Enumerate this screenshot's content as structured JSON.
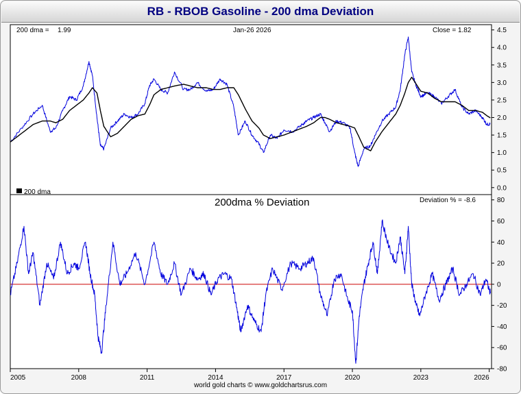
{
  "page": {
    "title": "RB - RBOB Gasoline - 200 dma Deviation",
    "footer": "world gold charts © www.goldchartsrus.com"
  },
  "chart_data": [
    {
      "type": "line",
      "panel": "price",
      "header": {
        "dma_label": "200 dma =",
        "dma_value": "1.99",
        "date": "Jan-26  2026",
        "close": "Close = 1.82"
      },
      "legend": [
        {
          "label": "200 dma",
          "color": "#000000"
        }
      ],
      "yticks": [
        "4.5",
        "4.0",
        "3.5",
        "3.0",
        "2.5",
        "2.0",
        "1.5",
        "1.0",
        "0.5",
        "0.0"
      ],
      "ylim": [
        -0.2,
        4.65
      ],
      "x": [
        2005.0,
        2005.5,
        2006.0,
        2006.4,
        2006.75,
        2007.0,
        2007.3,
        2007.6,
        2007.9,
        2008.2,
        2008.45,
        2008.6,
        2008.8,
        2008.95,
        2009.1,
        2009.4,
        2009.7,
        2010.0,
        2010.3,
        2010.6,
        2010.9,
        2011.1,
        2011.3,
        2011.6,
        2011.9,
        2012.2,
        2012.6,
        2012.9,
        2013.2,
        2013.6,
        2013.9,
        2014.2,
        2014.5,
        2014.8,
        2015.0,
        2015.3,
        2015.6,
        2015.9,
        2016.1,
        2016.4,
        2016.7,
        2017.0,
        2017.4,
        2017.8,
        2018.0,
        2018.3,
        2018.6,
        2018.8,
        2019.0,
        2019.3,
        2019.6,
        2019.9,
        2020.1,
        2020.25,
        2020.5,
        2020.8,
        2021.0,
        2021.3,
        2021.6,
        2021.9,
        2022.1,
        2022.3,
        2022.45,
        2022.6,
        2022.8,
        2023.0,
        2023.3,
        2023.6,
        2023.9,
        2024.2,
        2024.5,
        2024.8,
        2025.1,
        2025.4,
        2025.7,
        2025.9,
        2026.05
      ],
      "series": [
        {
          "name": "RBOB Gasoline",
          "color": "#0000dd",
          "values": [
            1.3,
            1.7,
            2.1,
            2.35,
            1.6,
            1.7,
            2.2,
            2.6,
            2.5,
            2.9,
            3.6,
            3.2,
            2.0,
            1.2,
            1.1,
            1.7,
            1.9,
            2.1,
            2.0,
            2.1,
            2.4,
            2.9,
            3.1,
            2.8,
            2.7,
            3.3,
            2.8,
            2.8,
            3.0,
            2.75,
            2.8,
            3.1,
            2.95,
            2.3,
            1.5,
            1.9,
            1.5,
            1.25,
            1.0,
            1.5,
            1.4,
            1.65,
            1.6,
            1.8,
            1.9,
            2.0,
            2.1,
            1.85,
            1.6,
            1.9,
            1.85,
            1.7,
            1.0,
            0.6,
            1.1,
            1.2,
            1.5,
            1.9,
            2.1,
            2.3,
            2.8,
            3.8,
            4.3,
            3.3,
            2.9,
            2.6,
            2.7,
            2.6,
            2.4,
            2.6,
            2.8,
            2.3,
            2.1,
            2.2,
            2.0,
            1.8,
            1.82
          ]
        },
        {
          "name": "200 dma",
          "color": "#000000",
          "values": [
            1.3,
            1.55,
            1.8,
            1.9,
            1.9,
            1.85,
            1.95,
            2.2,
            2.35,
            2.5,
            2.7,
            2.85,
            2.7,
            2.2,
            1.75,
            1.45,
            1.55,
            1.75,
            1.95,
            2.05,
            2.1,
            2.35,
            2.65,
            2.8,
            2.85,
            2.9,
            2.95,
            2.9,
            2.85,
            2.85,
            2.8,
            2.8,
            2.85,
            2.85,
            2.65,
            2.25,
            1.9,
            1.7,
            1.5,
            1.4,
            1.45,
            1.5,
            1.6,
            1.7,
            1.75,
            1.85,
            2.0,
            2.0,
            1.95,
            1.85,
            1.8,
            1.75,
            1.7,
            1.5,
            1.15,
            1.05,
            1.3,
            1.6,
            1.85,
            2.1,
            2.35,
            2.7,
            3.0,
            3.15,
            2.95,
            2.75,
            2.7,
            2.55,
            2.45,
            2.45,
            2.45,
            2.35,
            2.2,
            2.2,
            2.15,
            2.05,
            1.99
          ]
        }
      ]
    },
    {
      "type": "line",
      "panel": "deviation",
      "title": "200dma  %  Deviation",
      "header": {
        "deviation_label": "Deviation % = -8.6"
      },
      "yticks": [
        "80",
        "60",
        "40",
        "20",
        "0",
        "-20",
        "-40",
        "-60",
        "-80"
      ],
      "ylim": [
        -80,
        85
      ],
      "zero_line_color": "#cc0000",
      "x": [
        2005.0,
        2005.3,
        2005.6,
        2005.8,
        2006.0,
        2006.3,
        2006.6,
        2006.9,
        2007.2,
        2007.5,
        2007.8,
        2008.0,
        2008.3,
        2008.5,
        2008.7,
        2008.85,
        2009.0,
        2009.2,
        2009.5,
        2009.8,
        2010.1,
        2010.5,
        2010.9,
        2011.3,
        2011.6,
        2011.9,
        2012.2,
        2012.5,
        2012.9,
        2013.2,
        2013.5,
        2013.8,
        2014.1,
        2014.4,
        2014.7,
        2014.95,
        2015.1,
        2015.4,
        2015.7,
        2016.0,
        2016.2,
        2016.5,
        2016.9,
        2017.3,
        2017.7,
        2018.0,
        2018.3,
        2018.6,
        2018.9,
        2019.2,
        2019.5,
        2019.8,
        2020.0,
        2020.15,
        2020.3,
        2020.5,
        2020.7,
        2020.9,
        2021.1,
        2021.3,
        2021.6,
        2021.9,
        2022.1,
        2022.3,
        2022.45,
        2022.6,
        2022.8,
        2022.95,
        2023.2,
        2023.5,
        2023.8,
        2024.1,
        2024.4,
        2024.7,
        2025.0,
        2025.3,
        2025.6,
        2025.85,
        2026.05
      ],
      "series": [
        {
          "name": "200dma % Deviation",
          "color": "#0000dd",
          "values": [
            -10,
            20,
            55,
            10,
            30,
            -20,
            20,
            5,
            40,
            10,
            20,
            15,
            40,
            10,
            -10,
            -50,
            -65,
            -20,
            40,
            0,
            10,
            30,
            0,
            40,
            10,
            0,
            20,
            -10,
            15,
            5,
            10,
            -10,
            5,
            10,
            5,
            -25,
            -45,
            -20,
            -35,
            -45,
            -10,
            15,
            -5,
            20,
            15,
            20,
            25,
            -10,
            -30,
            5,
            10,
            -15,
            -25,
            -75,
            -30,
            0,
            20,
            40,
            10,
            60,
            35,
            20,
            45,
            10,
            55,
            0,
            -20,
            -30,
            -10,
            10,
            -15,
            0,
            15,
            -10,
            0,
            10,
            -10,
            5,
            -8.6
          ]
        }
      ]
    }
  ],
  "xaxis": {
    "ticks": [
      "2005",
      "2008",
      "2011",
      "2014",
      "2017",
      "2020",
      "2023",
      "2026"
    ],
    "tick_years": [
      2005,
      2008,
      2011,
      2014,
      2017,
      2020,
      2023,
      2026
    ],
    "xlim": [
      2005,
      2026.1
    ]
  }
}
